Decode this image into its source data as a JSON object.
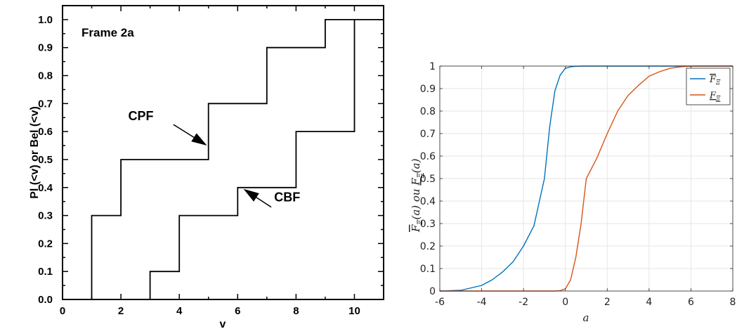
{
  "chart_data": [
    {
      "type": "line",
      "subtype": "step",
      "title": "",
      "annotation_text": "Frame 2a",
      "xlabel": "v",
      "ylabel": "Pl (<v) or Bel (<v)",
      "xlim": [
        0,
        11
      ],
      "ylim": [
        0,
        1.05
      ],
      "x_ticks": [
        0,
        2,
        4,
        6,
        8,
        10
      ],
      "y_ticks": [
        0.0,
        0.1,
        0.2,
        0.3,
        0.4,
        0.5,
        0.6,
        0.7,
        0.8,
        0.9,
        1.0
      ],
      "x_tick_labels": [
        "0",
        "2",
        "4",
        "6",
        "8",
        "10"
      ],
      "y_tick_labels": [
        "0.0",
        "0.1",
        "0.2",
        "0.3",
        "0.4",
        "0.5",
        "0.6",
        "0.7",
        "0.8",
        "0.9",
        "1.0"
      ],
      "grid": false,
      "series": [
        {
          "name": "CPF",
          "x": [
            1,
            1,
            2,
            2,
            5,
            5,
            7,
            7,
            9,
            9,
            11
          ],
          "y": [
            0,
            0.3,
            0.3,
            0.5,
            0.5,
            0.7,
            0.7,
            0.9,
            0.9,
            1.0,
            1.0
          ]
        },
        {
          "name": "CBF",
          "x": [
            3,
            3,
            4,
            4,
            6,
            6,
            8,
            8,
            10,
            10
          ],
          "y": [
            0,
            0.1,
            0.1,
            0.3,
            0.3,
            0.4,
            0.4,
            0.6,
            0.6,
            1.0
          ]
        }
      ],
      "annotations": [
        {
          "text": "CPF",
          "label_at": [
            2.25,
            0.64
          ],
          "arrow_from": [
            3.8,
            0.625
          ],
          "arrow_to": [
            4.95,
            0.55
          ]
        },
        {
          "text": "CBF",
          "label_at": [
            7.25,
            0.35
          ],
          "arrow_from": [
            7.15,
            0.33
          ],
          "arrow_to": [
            6.2,
            0.395
          ]
        }
      ]
    },
    {
      "type": "line",
      "title": "",
      "xlabel": "a",
      "ylabel_parts": [
        "F̄",
        "Ξ",
        "(a)  ou  ",
        "F",
        "Ξ",
        "(a)"
      ],
      "xlim": [
        -6,
        8
      ],
      "ylim": [
        0,
        1
      ],
      "x_ticks": [
        -6,
        -4,
        -2,
        0,
        2,
        4,
        6,
        8
      ],
      "y_ticks": [
        0,
        0.1,
        0.2,
        0.3,
        0.4,
        0.5,
        0.6,
        0.7,
        0.8,
        0.9,
        1
      ],
      "x_tick_labels": [
        "-6",
        "-4",
        "-2",
        "0",
        "2",
        "4",
        "6",
        "8"
      ],
      "y_tick_labels": [
        "0",
        "0.1",
        "0.2",
        "0.3",
        "0.4",
        "0.5",
        "0.6",
        "0.7",
        "0.8",
        "0.9",
        "1"
      ],
      "grid": true,
      "legend_position": "top-right",
      "series": [
        {
          "legend": [
            "F",
            "Ξ"
          ],
          "legend_bar": "over",
          "color": "#0072BD",
          "x": [
            -6,
            -5,
            -4,
            -3.5,
            -3,
            -2.5,
            -2,
            -1.5,
            -1,
            -0.75,
            -0.5,
            -0.25,
            0,
            0.25,
            0.5,
            0.75,
            1,
            2,
            8
          ],
          "y": [
            0.0,
            0.003,
            0.025,
            0.05,
            0.085,
            0.13,
            0.2,
            0.29,
            0.5,
            0.73,
            0.89,
            0.96,
            0.99,
            0.997,
            0.999,
            1.0,
            1.0,
            1.0,
            1.0
          ]
        },
        {
          "legend": [
            "F",
            "Ξ"
          ],
          "legend_bar": "under",
          "color": "#D95319",
          "x": [
            -6,
            -1,
            -0.5,
            -0.25,
            0,
            0.25,
            0.5,
            0.75,
            1,
            1.5,
            2,
            2.5,
            3,
            3.5,
            4,
            4.5,
            5,
            5.5,
            6,
            7,
            8
          ],
          "y": [
            0.0,
            0.0,
            0.0,
            0.002,
            0.01,
            0.05,
            0.15,
            0.3,
            0.5,
            0.59,
            0.7,
            0.8,
            0.87,
            0.915,
            0.955,
            0.975,
            0.99,
            0.997,
            1.0,
            1.0,
            1.0
          ]
        }
      ]
    }
  ]
}
